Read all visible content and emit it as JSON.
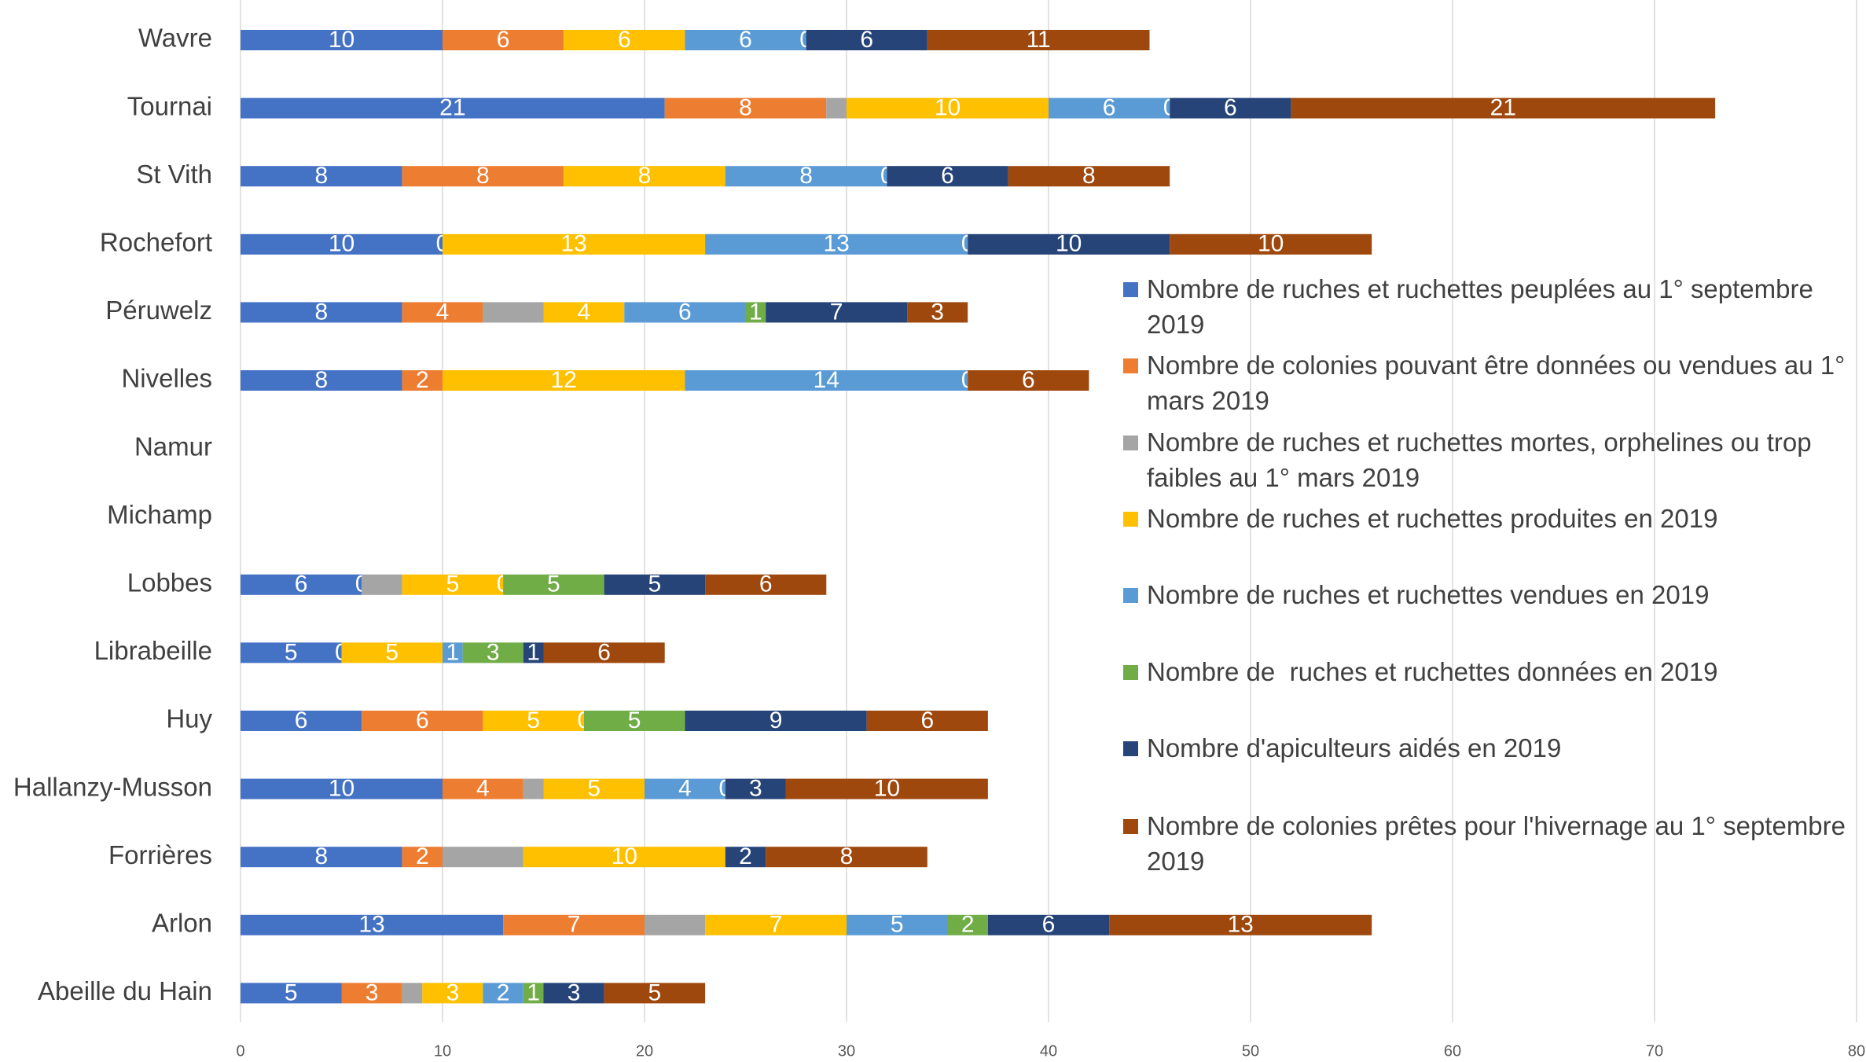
{
  "chart_data": {
    "type": "stacked_bar_horizontal",
    "categories": [
      "Wavre",
      "Tournai",
      "St Vith",
      "Rochefort",
      "Péruwelz",
      "Nivelles",
      "Namur",
      "Michamp",
      "Lobbes",
      "Librabeille",
      "Huy",
      "Hallanzy-Musson",
      "Forrières",
      "Arlon",
      "Abeille du Hain"
    ],
    "series": [
      {
        "name": "Nombre de ruches et ruchettes peuplées au 1° septembre 2019",
        "color": "#4472c4",
        "values": [
          10,
          21,
          8,
          10,
          8,
          8,
          null,
          null,
          6,
          5,
          6,
          10,
          8,
          13,
          5
        ]
      },
      {
        "name": "Nombre de colonies pouvant être données ou vendues au 1° mars 2019",
        "color": "#ed7d31",
        "values": [
          6,
          8,
          8,
          0,
          4,
          2,
          null,
          null,
          0,
          0,
          6,
          4,
          2,
          7,
          3
        ]
      },
      {
        "name": "Nombre de ruches et ruchettes mortes, orphelines ou trop faibles au 1° mars 2019",
        "color": "#a5a5a5",
        "show_labels": false,
        "values": [
          null,
          1,
          null,
          null,
          3,
          null,
          null,
          null,
          2,
          null,
          null,
          1,
          4,
          3,
          1
        ]
      },
      {
        "name": "Nombre de ruches et ruchettes produites en 2019",
        "color": "#ffc000",
        "values": [
          6,
          10,
          8,
          13,
          4,
          12,
          null,
          null,
          5,
          5,
          5,
          5,
          10,
          7,
          3
        ]
      },
      {
        "name": "Nombre de ruches et ruchettes vendues en 2019",
        "color": "#5b9bd5",
        "values": [
          6,
          6,
          8,
          13,
          6,
          14,
          null,
          null,
          0,
          1,
          0,
          4,
          null,
          5,
          2
        ]
      },
      {
        "name": "Nombre de  ruches et ruchettes données en 2019",
        "color": "#70ad47",
        "values": [
          0,
          0,
          0,
          0,
          1,
          0,
          null,
          null,
          5,
          3,
          5,
          0,
          null,
          2,
          1
        ]
      },
      {
        "name": "Nombre d'apiculteurs aidés en 2019",
        "color": "#264478",
        "values": [
          6,
          6,
          6,
          10,
          7,
          null,
          null,
          null,
          5,
          1,
          9,
          3,
          2,
          6,
          3
        ]
      },
      {
        "name": "Nombre de colonies prêtes pour l'hivernage au 1° septembre 2019",
        "color": "#9e480e",
        "values": [
          11,
          21,
          8,
          10,
          3,
          6,
          null,
          null,
          6,
          6,
          6,
          10,
          8,
          13,
          5
        ]
      }
    ],
    "xlim": [
      0,
      80
    ],
    "xticks": [
      0,
      10,
      20,
      30,
      40,
      50,
      60,
      70,
      80
    ],
    "grid": true,
    "legend": "right"
  }
}
